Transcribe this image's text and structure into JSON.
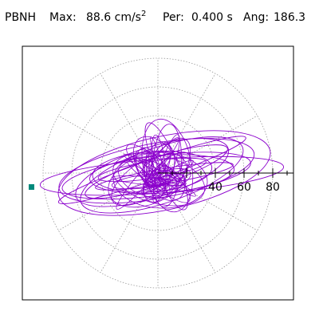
{
  "header": {
    "station": "PBNH",
    "max_label": "Max:",
    "max_value": "88.6 cm/s",
    "max_exponent": "2",
    "per_label": "Per:",
    "per_value": "0.400 s",
    "ang_label": "Ang:",
    "ang_value": "186.3"
  },
  "chart_data": {
    "type": "polar-scatter",
    "title": "",
    "station": "PBNH",
    "max_acceleration_cm_s2": 88.6,
    "period_s": 0.4,
    "angle_deg": 186.3,
    "radial_ticks": [
      40,
      60,
      80
    ],
    "radial_tick_labels": [
      "40",
      "60",
      "80"
    ],
    "rings": [
      40,
      60,
      80
    ],
    "spokes_deg": [
      0,
      30,
      60,
      90,
      120,
      150,
      180,
      210,
      240,
      270,
      300,
      330
    ],
    "grid": true,
    "series": [
      {
        "kind": "particle-motion trace",
        "color": "#8b00cc",
        "orbit_count": 12,
        "max_radius": 88.6,
        "dominant_azimuth_deg": 186.3
      }
    ],
    "marker": {
      "azimuth_deg": 186.3,
      "radius": 88.6,
      "color": "#00897b"
    },
    "colors": {
      "trace": "#8b00cc",
      "grid": "#999999",
      "axis": "#000000",
      "marker": "#00897b"
    }
  }
}
